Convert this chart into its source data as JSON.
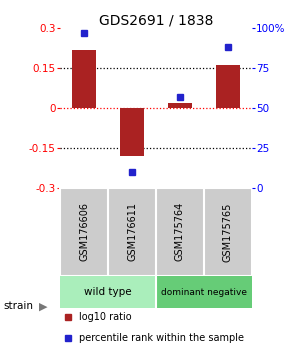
{
  "title": "GDS2691 / 1838",
  "samples": [
    "GSM176606",
    "GSM176611",
    "GSM175764",
    "GSM175765"
  ],
  "log10_ratio": [
    0.22,
    -0.18,
    0.02,
    0.16
  ],
  "percentile_rank": [
    97,
    10,
    57,
    88
  ],
  "bar_color": "#aa2222",
  "dot_color": "#2222cc",
  "ylim": [
    -0.3,
    0.3
  ],
  "y_ticks_left": [
    -0.3,
    -0.15,
    0,
    0.15,
    0.3
  ],
  "y_ticks_right": [
    0,
    25,
    50,
    75,
    100
  ],
  "groups": [
    {
      "label": "wild type",
      "color": "#aaeebb"
    },
    {
      "label": "dominant negative",
      "color": "#66cc77"
    }
  ],
  "strain_label": "strain",
  "legend_items": [
    {
      "color": "#aa2222",
      "label": "log10 ratio"
    },
    {
      "color": "#2222cc",
      "label": "percentile rank within the sample"
    }
  ],
  "background_color": "#ffffff",
  "sample_bg_color": "#cccccc",
  "sample_text_fontsize": 7,
  "title_fontsize": 10
}
